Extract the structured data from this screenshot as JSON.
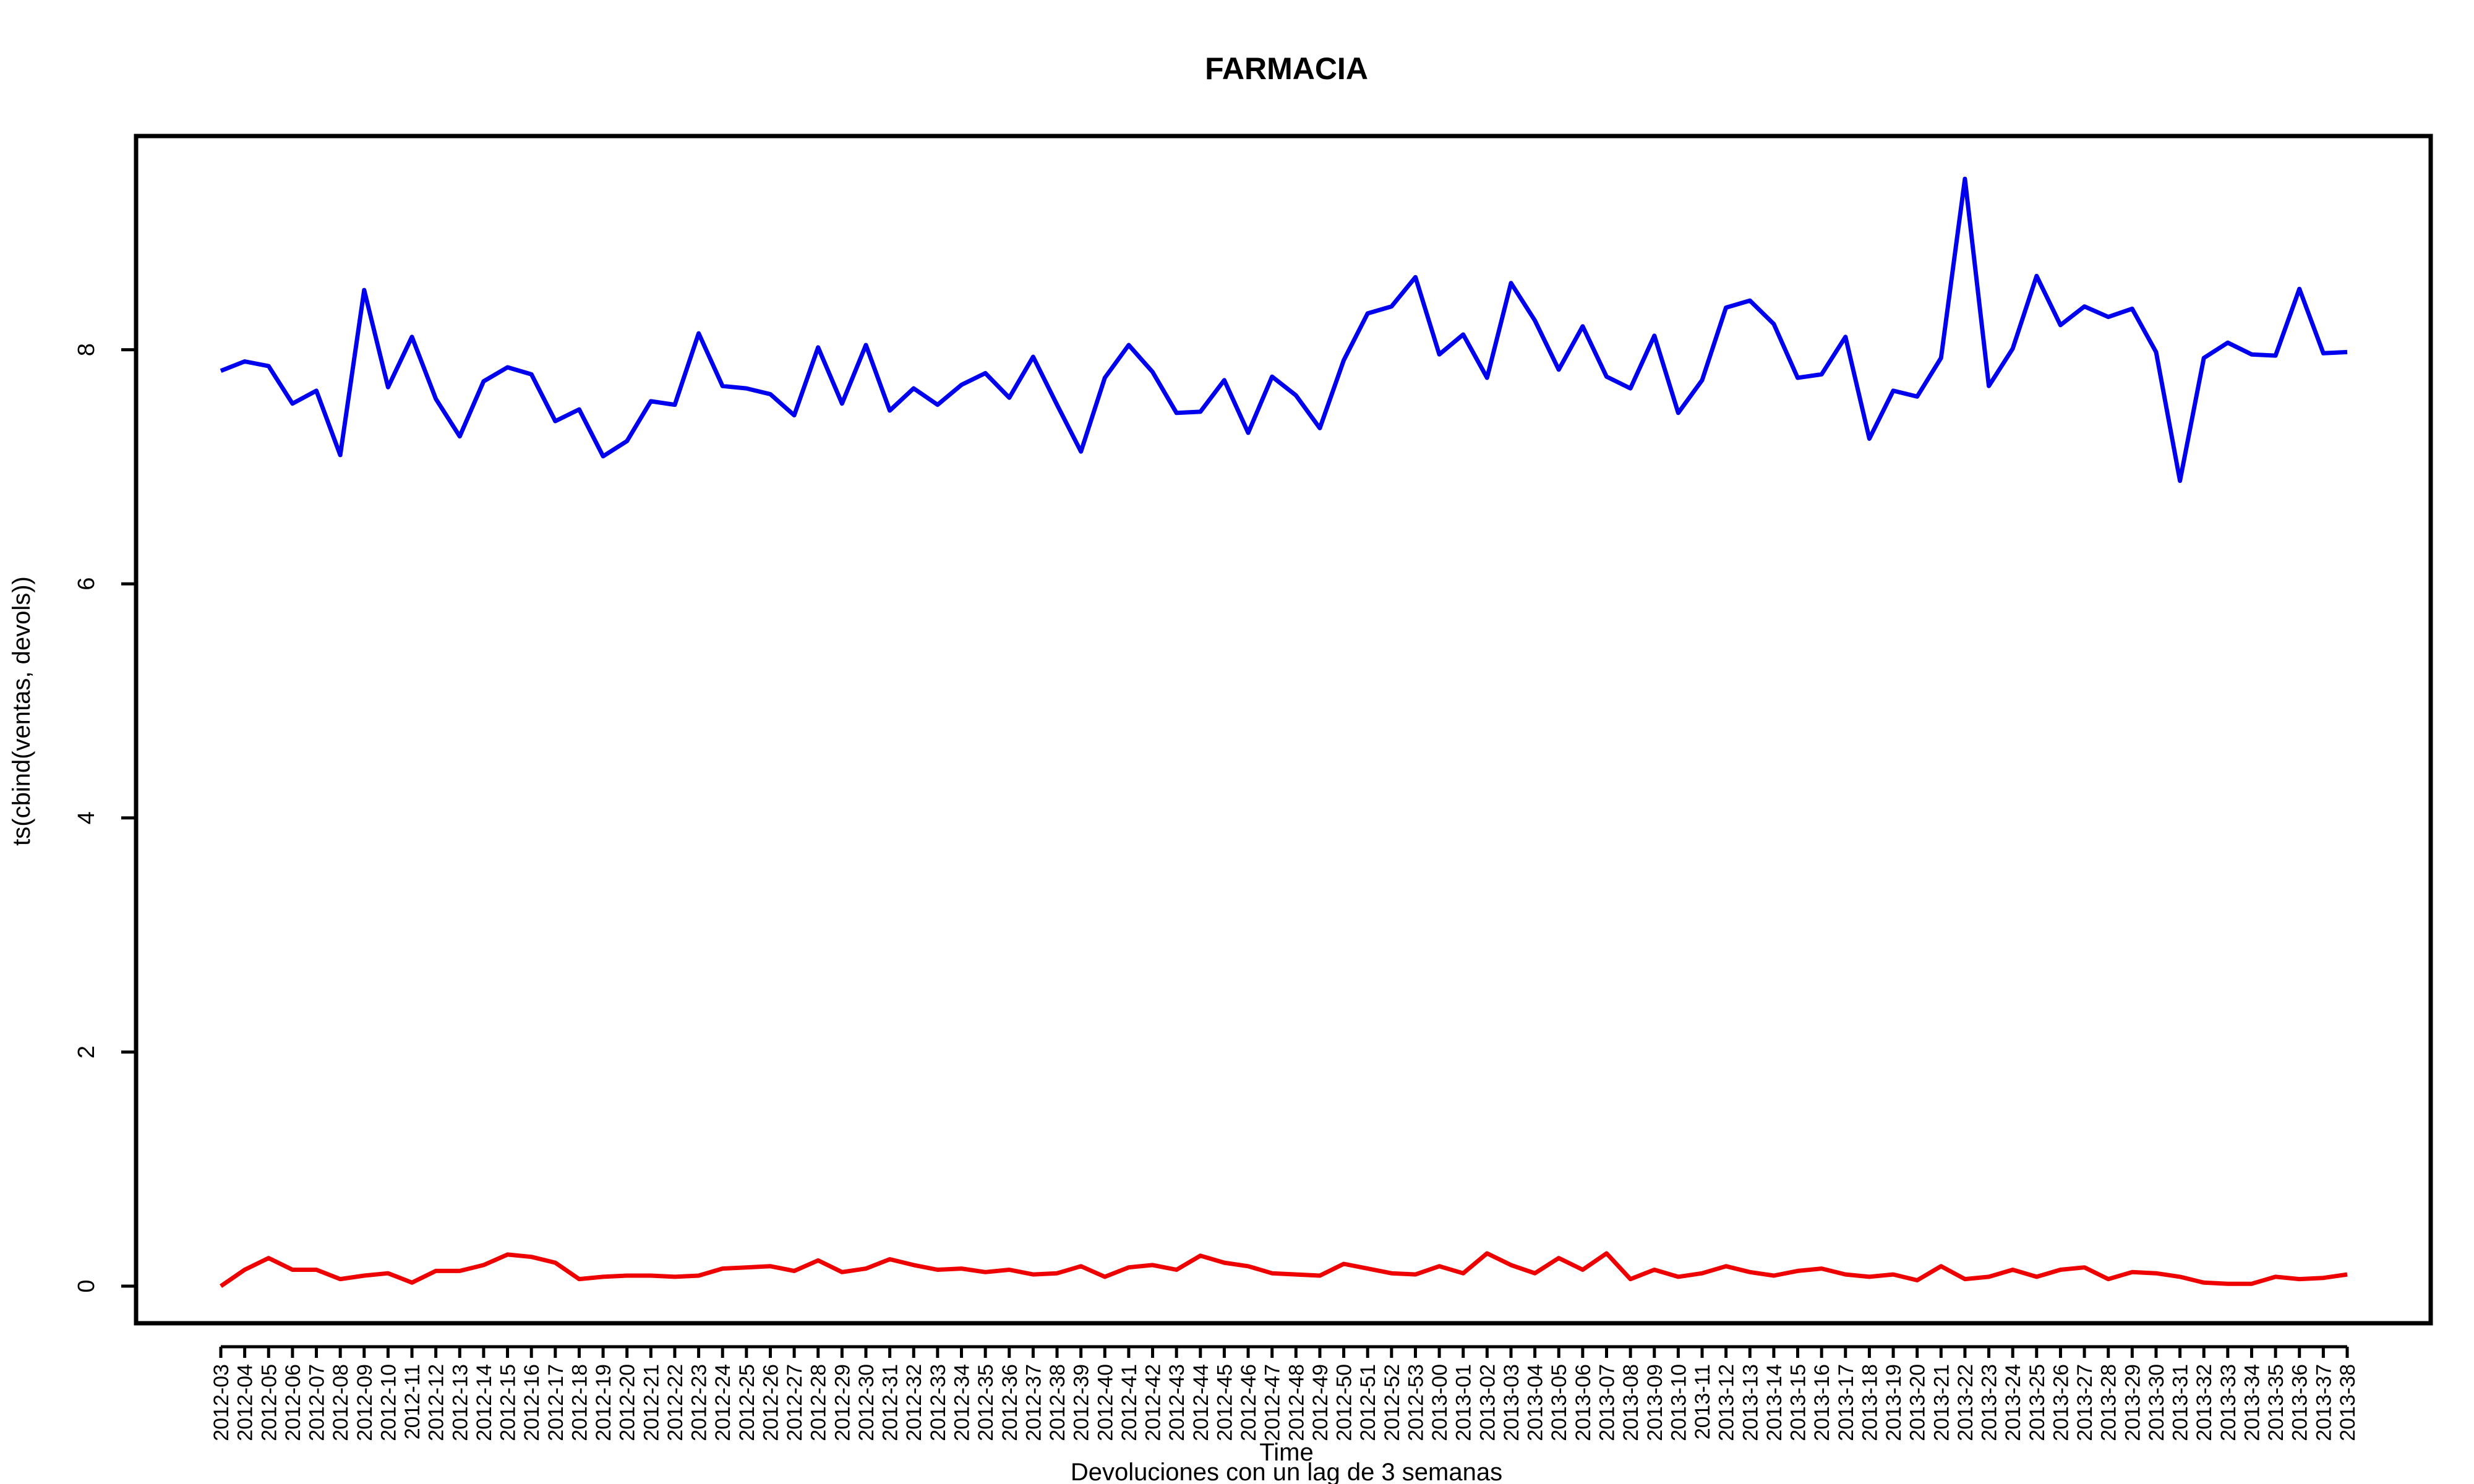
{
  "chart_data": {
    "type": "line",
    "title": "FARMACIA",
    "xlabel": "Time",
    "subtitle": "Devoluciones con un lag de 3 semanas",
    "ylabel": "ts(cbind(ventas, devols))",
    "ylim": [
      0,
      9.5
    ],
    "yticks": [
      0,
      2,
      4,
      6,
      8
    ],
    "grid": false,
    "legend": "none",
    "categories": [
      "2012-03",
      "2012-04",
      "2012-05",
      "2012-06",
      "2012-07",
      "2012-08",
      "2012-09",
      "2012-10",
      "2012-11",
      "2012-12",
      "2012-13",
      "2012-14",
      "2012-15",
      "2012-16",
      "2012-17",
      "2012-18",
      "2012-19",
      "2012-20",
      "2012-21",
      "2012-22",
      "2012-23",
      "2012-24",
      "2012-25",
      "2012-26",
      "2012-27",
      "2012-28",
      "2012-29",
      "2012-30",
      "2012-31",
      "2012-32",
      "2012-33",
      "2012-34",
      "2012-35",
      "2012-36",
      "2012-37",
      "2012-38",
      "2012-39",
      "2012-40",
      "2012-41",
      "2012-42",
      "2012-43",
      "2012-44",
      "2012-45",
      "2012-46",
      "2012-47",
      "2012-48",
      "2012-49",
      "2012-50",
      "2012-51",
      "2012-52",
      "2012-53",
      "2013-00",
      "2013-01",
      "2013-02",
      "2013-03",
      "2013-04",
      "2013-05",
      "2013-06",
      "2013-07",
      "2013-08",
      "2013-09",
      "2013-10",
      "2013-11",
      "2013-12",
      "2013-13",
      "2013-14",
      "2013-15",
      "2013-16",
      "2013-17",
      "2013-18",
      "2013-19",
      "2013-20",
      "2013-21",
      "2013-22",
      "2013-23",
      "2013-24",
      "2013-25",
      "2013-26",
      "2013-27",
      "2013-28",
      "2013-29",
      "2013-30",
      "2013-31",
      "2013-32",
      "2013-33",
      "2013-34",
      "2013-35",
      "2013-36",
      "2013-37",
      "2013-38"
    ],
    "series": [
      {
        "color": "#0000ee",
        "values": [
          7.82,
          7.9,
          7.86,
          7.54,
          7.65,
          7.1,
          8.51,
          7.68,
          8.11,
          7.58,
          7.26,
          7.73,
          7.85,
          7.79,
          7.39,
          7.49,
          7.09,
          7.22,
          7.56,
          7.53,
          8.14,
          7.69,
          7.67,
          7.62,
          7.44,
          8.02,
          7.54,
          8.04,
          7.48,
          7.67,
          7.53,
          7.7,
          7.8,
          7.59,
          7.94,
          7.53,
          7.13,
          7.76,
          8.04,
          7.81,
          7.46,
          7.47,
          7.74,
          7.29,
          7.77,
          7.61,
          7.33,
          7.91,
          8.31,
          8.37,
          8.62,
          7.96,
          8.13,
          7.76,
          8.57,
          8.25,
          7.83,
          8.2,
          7.77,
          7.67,
          8.12,
          7.46,
          7.74,
          8.36,
          8.42,
          8.22,
          7.76,
          7.79,
          8.11,
          7.24,
          7.65,
          7.6,
          7.93,
          9.46,
          7.69,
          8.01,
          8.63,
          8.21,
          8.37,
          8.28,
          8.35,
          7.98,
          6.88,
          7.93,
          8.06,
          7.96,
          7.95,
          8.52,
          7.97,
          7.98
        ]
      },
      {
        "color": "#ee0000",
        "values": [
          0.0,
          0.14,
          0.24,
          0.14,
          0.14,
          0.06,
          0.09,
          0.11,
          0.03,
          0.13,
          0.13,
          0.18,
          0.27,
          0.25,
          0.2,
          0.06,
          0.08,
          0.09,
          0.09,
          0.08,
          0.09,
          0.15,
          0.16,
          0.17,
          0.13,
          0.22,
          0.12,
          0.15,
          0.23,
          0.18,
          0.14,
          0.15,
          0.12,
          0.14,
          0.1,
          0.11,
          0.17,
          0.08,
          0.16,
          0.18,
          0.14,
          0.26,
          0.2,
          0.17,
          0.11,
          0.1,
          0.09,
          0.19,
          0.15,
          0.11,
          0.1,
          0.17,
          0.11,
          0.28,
          0.18,
          0.11,
          0.24,
          0.14,
          0.28,
          0.06,
          0.14,
          0.08,
          0.11,
          0.17,
          0.12,
          0.09,
          0.13,
          0.15,
          0.1,
          0.08,
          0.1,
          0.05,
          0.17,
          0.06,
          0.08,
          0.14,
          0.08,
          0.14,
          0.16,
          0.06,
          0.12,
          0.11,
          0.08,
          0.03,
          0.02,
          0.02,
          0.08,
          0.06,
          0.07,
          0.1
        ]
      }
    ]
  }
}
